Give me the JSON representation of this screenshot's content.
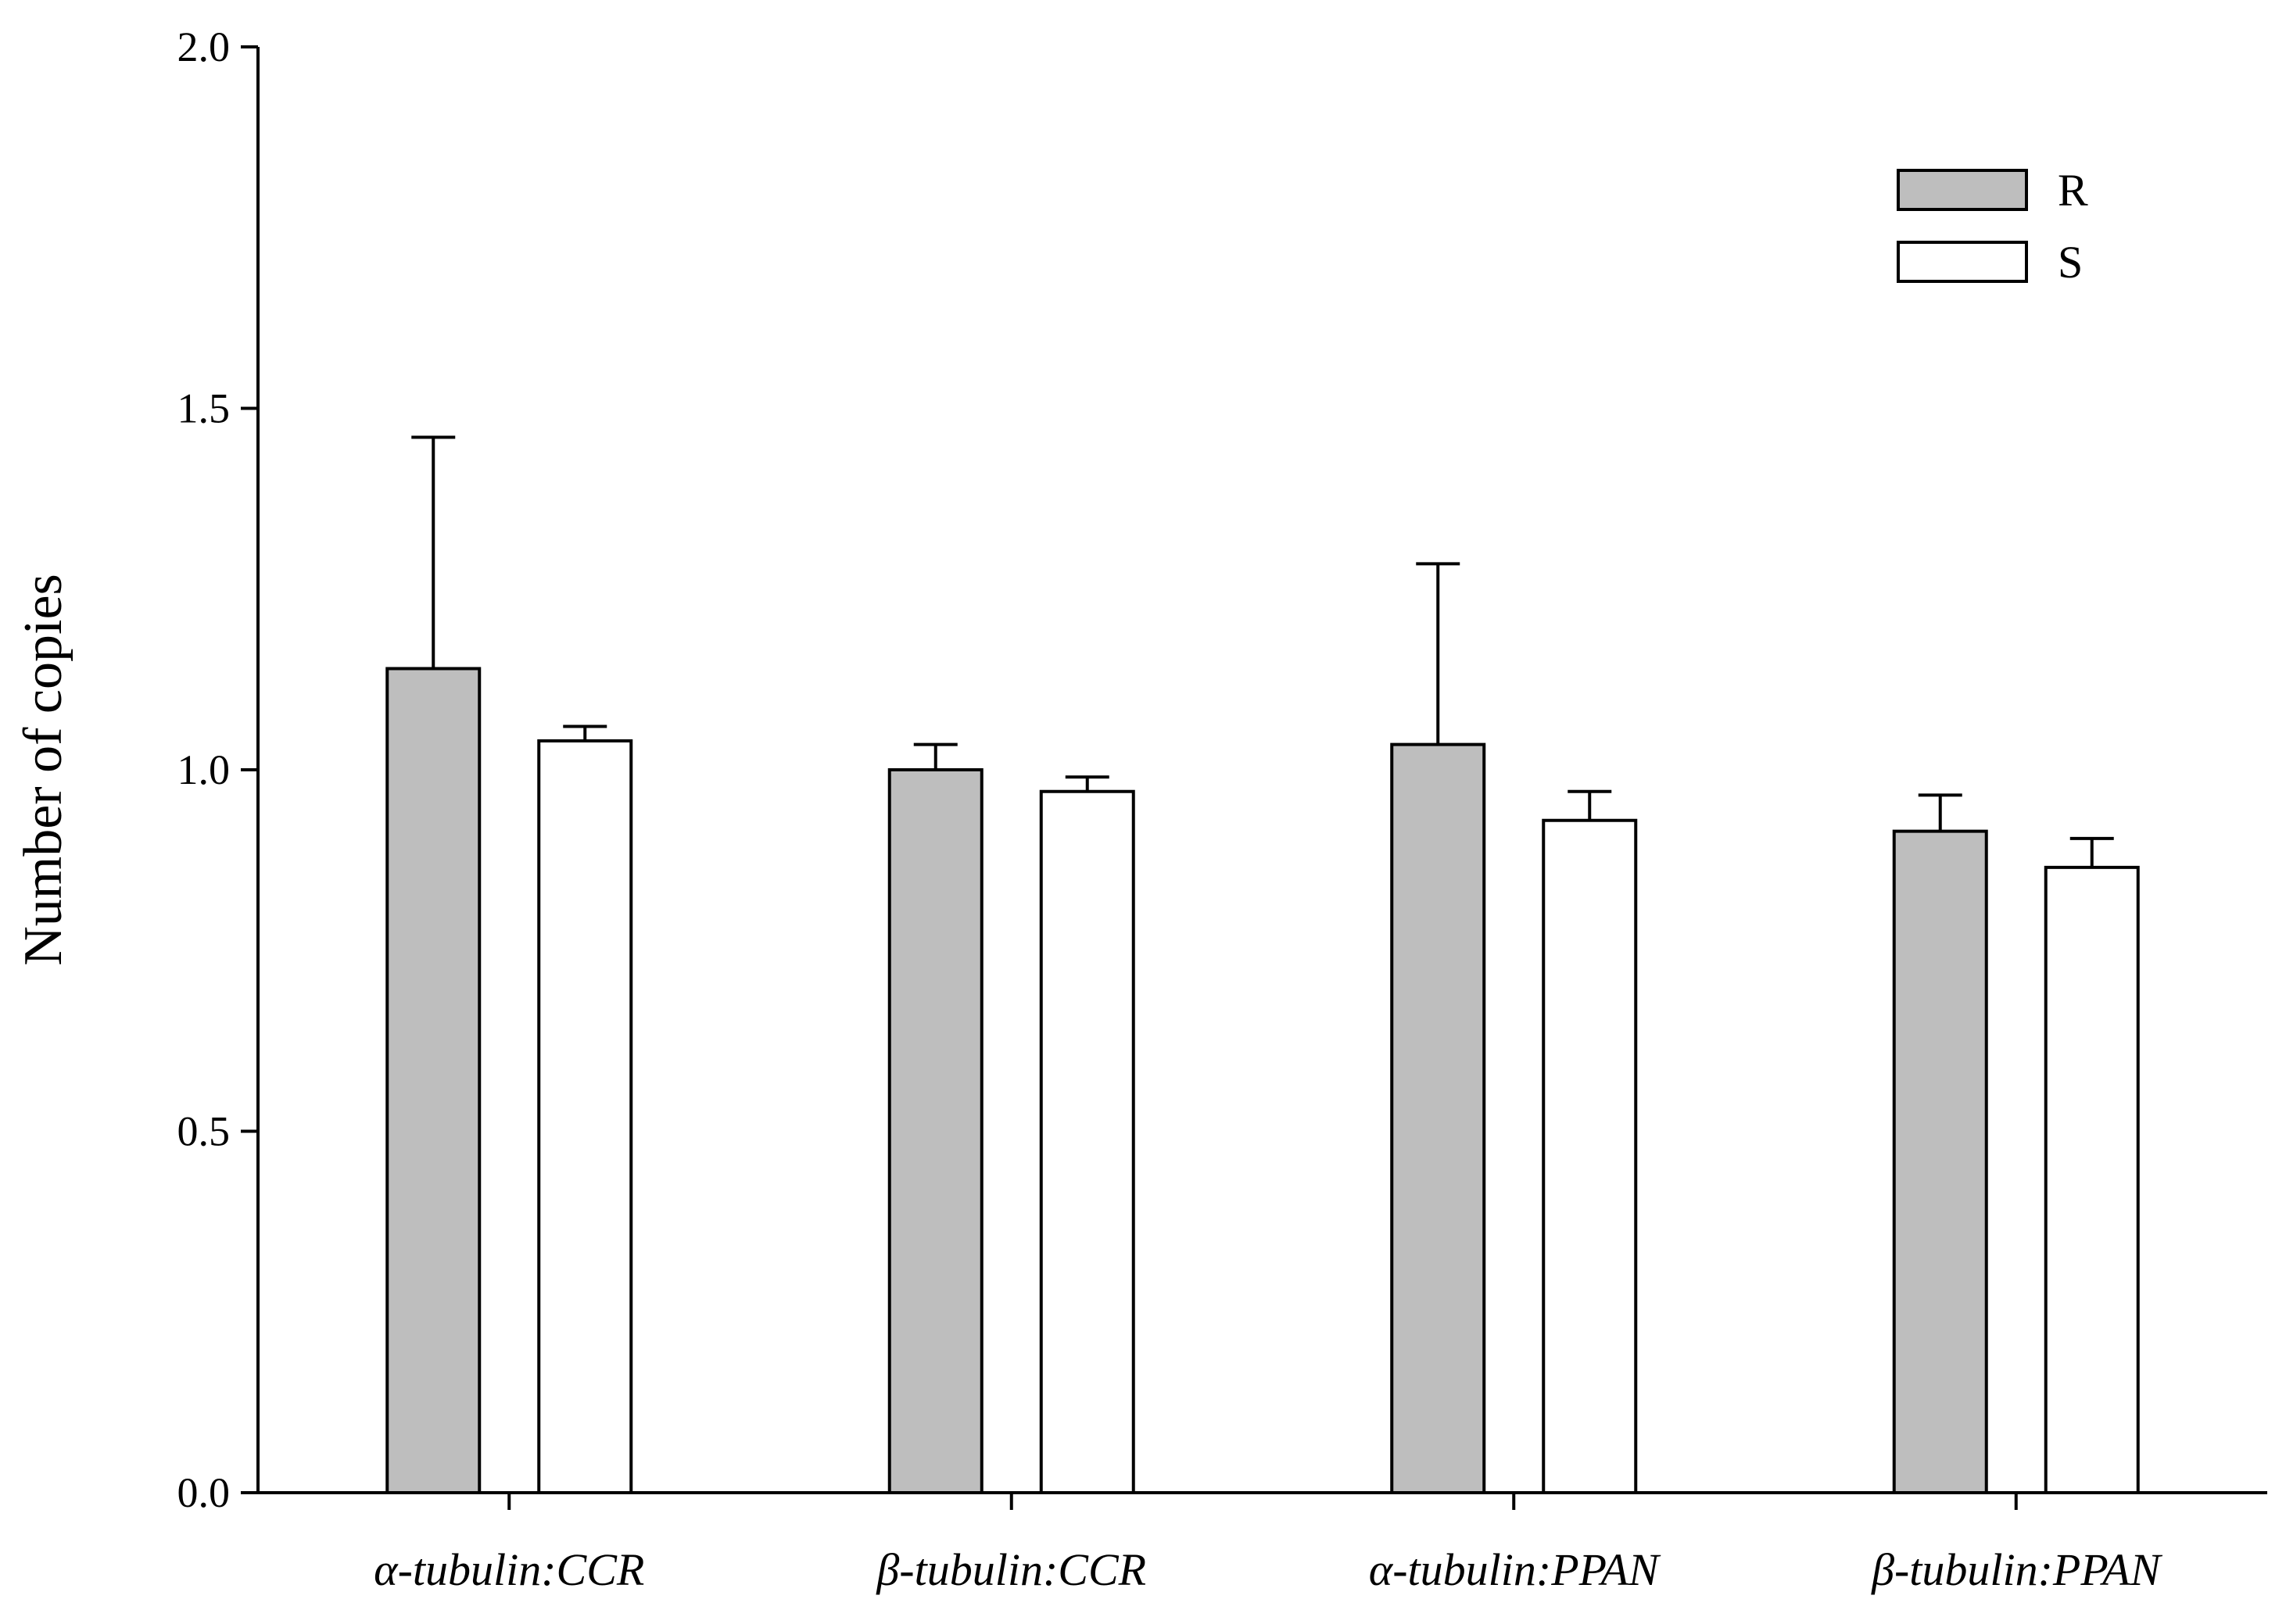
{
  "chart_data": {
    "type": "bar",
    "title": "",
    "xlabel": "",
    "ylabel": "Number of copies",
    "ylim": [
      0.0,
      2.0
    ],
    "yticks": [
      0.0,
      0.5,
      1.0,
      1.5,
      2.0
    ],
    "ytick_labels": [
      "0.0",
      "0.5",
      "1.0",
      "1.5",
      "2.0"
    ],
    "categories": [
      "α-tubulin:CCR",
      "β-tubulin:CCR",
      "α-tubulin:PPAN",
      "β-tubulin:PPAN"
    ],
    "series": [
      {
        "name": "R",
        "color": "#bebebe",
        "values": [
          1.14,
          1.0,
          1.035,
          0.915
        ],
        "errors": [
          0.32,
          0.035,
          0.25,
          0.05
        ]
      },
      {
        "name": "S",
        "color": "#ffffff",
        "values": [
          1.04,
          0.97,
          0.93,
          0.865
        ],
        "errors": [
          0.02,
          0.02,
          0.04,
          0.04
        ]
      }
    ],
    "legend": {
      "position": "top-right",
      "entries": [
        "R",
        "S"
      ]
    },
    "grid": false
  }
}
